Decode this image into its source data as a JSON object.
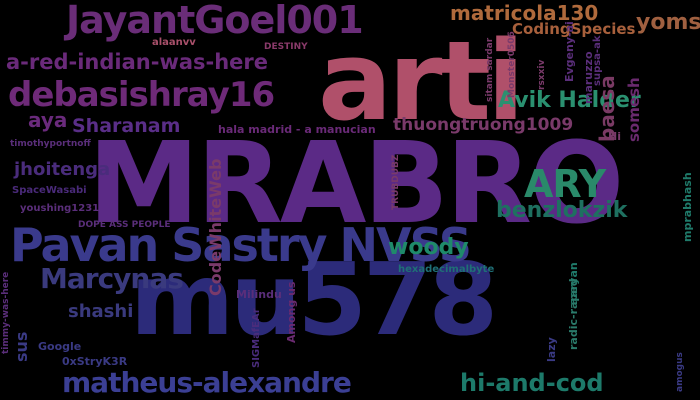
{
  "cloud": {
    "words": [
      {
        "text": "MRABRO",
        "color": "#5b2a86"
      },
      {
        "text": "arti",
        "color": "#b0506a"
      },
      {
        "text": "mu578",
        "color": "#2c2b7a"
      },
      {
        "text": "Pavan Sastry NVSS",
        "color": "#3a3a8c"
      },
      {
        "text": "JayantGoel001",
        "color": "#6a2d78"
      },
      {
        "text": "debasishray16",
        "color": "#6e2a78"
      },
      {
        "text": "a-red-indian-was-here",
        "color": "#6a2a7a"
      },
      {
        "text": "matheus-alexandre",
        "color": "#3b3f94"
      },
      {
        "text": "Marcynas",
        "color": "#3a3a7e"
      },
      {
        "text": "matricola130",
        "color": "#b06a3c"
      },
      {
        "text": "CodingSpecies",
        "color": "#a8603c"
      },
      {
        "text": "Sharanam",
        "color": "#5a2e88"
      },
      {
        "text": "aya",
        "color": "#6a2a7c"
      },
      {
        "text": "thuongtruong1009",
        "color": "#7a3a6a"
      },
      {
        "text": "jhoitenga",
        "color": "#4a2c7c"
      },
      {
        "text": "shashi",
        "color": "#3a3a7e"
      },
      {
        "text": "hi-and-cod",
        "color": "#1d7a6a"
      },
      {
        "text": "woody",
        "color": "#1f8a6a"
      },
      {
        "text": "Avik Halder",
        "color": "#2a9070"
      },
      {
        "text": "benzlokzik",
        "color": "#1e7060"
      },
      {
        "text": "ARY",
        "color": "#2a8a6a"
      },
      {
        "text": "yomsterzz",
        "color": "#a06040"
      },
      {
        "text": "baesa",
        "color": "#7a3a64"
      },
      {
        "text": "somesh",
        "color": "#6a2a6e"
      },
      {
        "text": "sus",
        "color": "#3a3a84"
      },
      {
        "text": "CodeWhiteWeb",
        "color": "#7a3a6a"
      },
      {
        "text": "hala madrid - a manucian",
        "color": "#6a2a78"
      },
      {
        "text": "DOPE ASS PEOPLE",
        "color": "#5a2e7a"
      },
      {
        "text": "timothyportnoff",
        "color": "#5a2e7a"
      },
      {
        "text": "SpaceWasabi",
        "color": "#4a2a7a"
      },
      {
        "text": "youshing1231",
        "color": "#5a2e7a"
      },
      {
        "text": "hexadecimalbyte",
        "color": "#1f6f76"
      },
      {
        "text": "Milindu",
        "color": "#5a2e7a"
      },
      {
        "text": "Among us",
        "color": "#6a2a70"
      },
      {
        "text": "SIGMafEAr",
        "color": "#4a2c7c"
      },
      {
        "text": "Google",
        "color": "#3a3a84"
      },
      {
        "text": "0xStryK3R",
        "color": "#3a3a84"
      },
      {
        "text": "timmy-was-here",
        "color": "#5a2e7a"
      },
      {
        "text": "alaanvv",
        "color": "#a8506a"
      },
      {
        "text": "DESTINY",
        "color": "#8a3a6a"
      },
      {
        "text": "sitam sardar",
        "color": "#7a3a6a"
      },
      {
        "text": "Monster0506",
        "color": "#7a3a6a"
      },
      {
        "text": "rsxxiv",
        "color": "#7a3a6a"
      },
      {
        "text": "Evgeny-ai",
        "color": "#5a2e7a"
      },
      {
        "text": "maruzzo",
        "color": "#5a2e7a"
      },
      {
        "text": "supsa-ak",
        "color": "#5a2e7a"
      },
      {
        "text": "Hi",
        "color": "#7a3a6a"
      },
      {
        "text": "TRUBDUBZ",
        "color": "#7a3a6a"
      },
      {
        "text": "aaryan",
        "color": "#1f7a6a"
      },
      {
        "text": "radic-raped",
        "color": "#2a7a6a"
      },
      {
        "text": "lazy",
        "color": "#3a3a84"
      },
      {
        "text": "mprabhash",
        "color": "#1f7a6a"
      },
      {
        "text": "amogus",
        "color": "#3a3a84"
      }
    ]
  }
}
